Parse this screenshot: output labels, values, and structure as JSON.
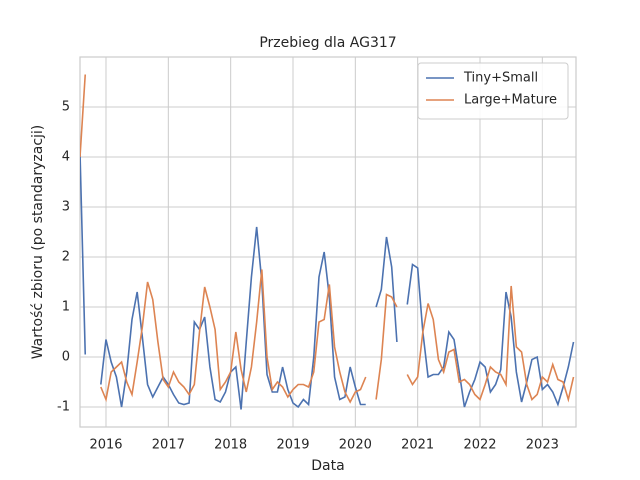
{
  "chart_data": {
    "type": "line",
    "title": "Przebieg dla AG317",
    "xlabel": "Data",
    "ylabel": "Wartość zbioru (po standaryzacji)",
    "x": [
      2015.583,
      2015.667,
      2015.75,
      2015.833,
      2015.917,
      2016.0,
      2016.083,
      2016.167,
      2016.25,
      2016.333,
      2016.417,
      2016.5,
      2016.583,
      2016.667,
      2016.75,
      2016.833,
      2016.917,
      2017.0,
      2017.083,
      2017.167,
      2017.25,
      2017.333,
      2017.417,
      2017.5,
      2017.583,
      2017.667,
      2017.75,
      2017.833,
      2017.917,
      2018.0,
      2018.083,
      2018.167,
      2018.25,
      2018.333,
      2018.417,
      2018.5,
      2018.583,
      2018.667,
      2018.75,
      2018.833,
      2018.917,
      2019.0,
      2019.083,
      2019.167,
      2019.25,
      2019.333,
      2019.417,
      2019.5,
      2019.583,
      2019.667,
      2019.75,
      2019.833,
      2019.917,
      2020.0,
      2020.083,
      2020.167,
      2020.25,
      2020.333,
      2020.417,
      2020.5,
      2020.583,
      2020.667,
      2020.75,
      2020.833,
      2020.917,
      2021.0,
      2021.083,
      2021.167,
      2021.25,
      2021.333,
      2021.417,
      2021.5,
      2021.583,
      2021.667,
      2021.75,
      2021.833,
      2021.917,
      2022.0,
      2022.083,
      2022.167,
      2022.25,
      2022.333,
      2022.417,
      2022.5,
      2022.583,
      2022.667,
      2022.75,
      2022.833,
      2022.917,
      2023.0,
      2023.083,
      2023.167,
      2023.25,
      2023.333,
      2023.417,
      2023.5
    ],
    "series": [
      {
        "name": "Tiny+Small",
        "color": "#4c72b0",
        "values": [
          4.1,
          0.05,
          null,
          null,
          -0.55,
          0.35,
          -0.1,
          -0.4,
          -1.0,
          -0.3,
          0.75,
          1.3,
          0.4,
          -0.55,
          -0.8,
          -0.6,
          -0.4,
          -0.55,
          -0.75,
          -0.92,
          -0.95,
          -0.92,
          0.7,
          0.55,
          0.8,
          -0.2,
          -0.85,
          -0.9,
          -0.7,
          -0.3,
          -0.2,
          -1.05,
          0.3,
          1.6,
          2.6,
          1.5,
          -0.35,
          -0.7,
          -0.7,
          -0.2,
          -0.65,
          -0.92,
          -1.0,
          -0.85,
          -0.95,
          0.0,
          1.6,
          2.1,
          1.2,
          -0.4,
          -0.85,
          -0.8,
          -0.2,
          -0.6,
          -0.95,
          -0.95,
          null,
          1.0,
          1.35,
          2.4,
          1.8,
          0.3,
          null,
          1.05,
          1.85,
          1.78,
          0.5,
          -0.4,
          -0.35,
          -0.35,
          -0.2,
          0.5,
          0.35,
          -0.3,
          -1.0,
          -0.7,
          -0.45,
          -0.1,
          -0.2,
          -0.7,
          -0.55,
          -0.25,
          1.3,
          0.8,
          -0.3,
          -0.9,
          -0.5,
          -0.05,
          0.0,
          -0.65,
          -0.55,
          -0.7,
          -0.95,
          -0.6,
          -0.2,
          0.3
        ]
      },
      {
        "name": "Large+Mature",
        "color": "#dd8452",
        "values": [
          4.0,
          5.65,
          null,
          null,
          -0.6,
          -0.85,
          -0.3,
          -0.2,
          -0.1,
          -0.5,
          -0.75,
          -0.1,
          0.6,
          1.5,
          1.15,
          0.3,
          -0.45,
          -0.6,
          -0.3,
          -0.5,
          -0.6,
          -0.75,
          -0.55,
          0.5,
          1.4,
          1.0,
          0.55,
          -0.65,
          -0.5,
          -0.3,
          0.5,
          -0.25,
          -0.7,
          -0.2,
          0.7,
          1.75,
          0.0,
          -0.65,
          -0.5,
          -0.6,
          -0.8,
          -0.65,
          -0.55,
          -0.55,
          -0.6,
          -0.3,
          0.7,
          0.75,
          1.45,
          0.2,
          -0.3,
          -0.7,
          -0.9,
          -0.7,
          -0.65,
          -0.4,
          null,
          -0.85,
          -0.05,
          1.25,
          1.2,
          1.0,
          null,
          -0.35,
          -0.55,
          -0.4,
          0.5,
          1.07,
          0.75,
          -0.05,
          -0.3,
          0.1,
          0.15,
          -0.5,
          -0.45,
          -0.55,
          -0.75,
          -0.85,
          -0.55,
          -0.2,
          -0.3,
          -0.35,
          -0.55,
          1.42,
          0.2,
          0.1,
          -0.55,
          -0.85,
          -0.75,
          -0.4,
          -0.5,
          -0.15,
          -0.45,
          -0.5,
          -0.85,
          -0.4
        ]
      }
    ],
    "xlim": [
      2015.583,
      2023.54
    ],
    "xticks": [
      2016,
      2017,
      2018,
      2019,
      2020,
      2021,
      2022,
      2023
    ],
    "ylim": [
      -1.4,
      6.0
    ],
    "yticks": [
      -1,
      0,
      1,
      2,
      3,
      4,
      5
    ],
    "grid": true,
    "legend": "upper right"
  }
}
